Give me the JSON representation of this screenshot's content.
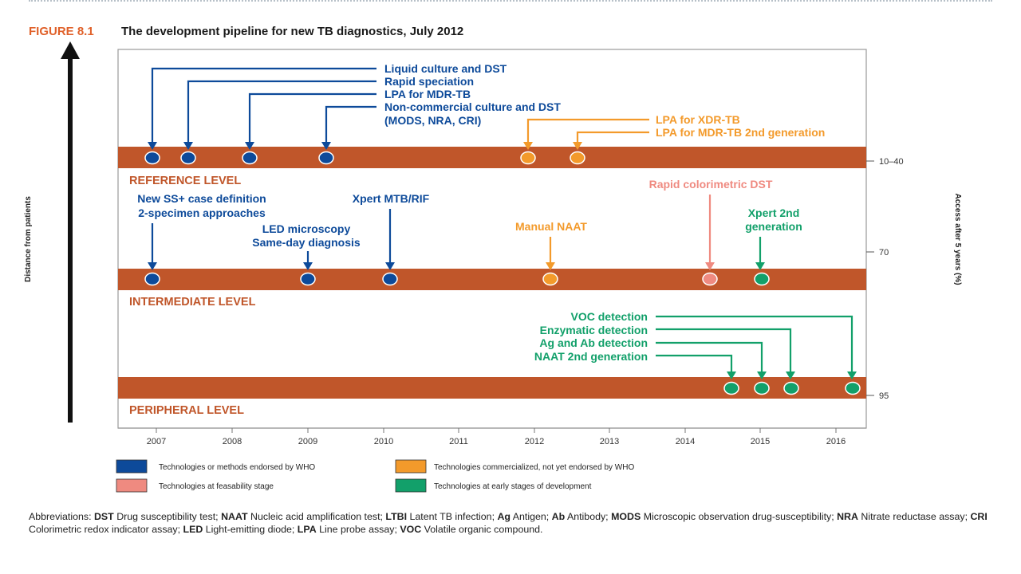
{
  "figure": {
    "label": "FIGURE 8.1",
    "title": "The development pipeline for new TB diagnostics, July 2012"
  },
  "axes": {
    "left_label": "Distance from patients",
    "right_label": "Access after 5 years (%)",
    "years": [
      "2007",
      "2008",
      "2009",
      "2010",
      "2011",
      "2012",
      "2013",
      "2014",
      "2015",
      "2016"
    ],
    "access_ticks": [
      "10–40",
      "70",
      "95"
    ]
  },
  "levels": {
    "reference": "REFERENCE LEVEL",
    "intermediate": "INTERMEDIATE LEVEL",
    "peripheral": "PERIPHERAL LEVEL"
  },
  "colors": {
    "band": "#c0562a",
    "endorsed": "#0d4a9a",
    "commercialized": "#f39a2b",
    "feasibility": "#ef8a80",
    "early": "#12a06a"
  },
  "labels": {
    "liquid_culture": "Liquid culture and DST",
    "rapid_speciation": "Rapid speciation",
    "lpa_mdr": "LPA for MDR-TB",
    "noncommercial_1": "Non-commercial culture and DST",
    "noncommercial_2": "(MODS, NRA, CRI)",
    "lpa_xdr": "LPA for XDR-TB",
    "lpa_mdr_2nd": "LPA for MDR-TB 2nd generation",
    "new_ss_1": "New SS+ case definition",
    "new_ss_2": "2-specimen approaches",
    "led_1": "LED microscopy",
    "led_2": "Same-day diagnosis",
    "xpert": "Xpert MTB/RIF",
    "manual_naat": "Manual NAAT",
    "rapid_colorimetric": "Rapid colorimetric DST",
    "xpert_2nd_1": "Xpert 2nd",
    "xpert_2nd_2": "generation",
    "voc": "VOC detection",
    "enzymatic": "Enzymatic detection",
    "ag_ab": "Ag and Ab detection",
    "naat_2nd": "NAAT 2nd generation"
  },
  "legend": {
    "endorsed": "Technologies or methods endorsed  by WHO",
    "commercialized": "Technologies commercialized, not yet endorsed by WHO",
    "feasibility": "Technologies at feasability stage",
    "early": "Technologies at early stages of development"
  },
  "abbreviations": {
    "dst_term": "DST",
    "dst_def": " Drug susceptibility test; ",
    "naat_term": "NAAT",
    "naat_def": " Nucleic acid amplification test; ",
    "ltbi_term": "LTBI",
    "ltbi_def": " Latent TB infection; ",
    "ag_term": "Ag",
    "ag_def": " Antigen; ",
    "ab_term": "Ab",
    "ab_def": " Antibody; ",
    "mods_term": "MODS",
    "mods_def": " Microscopic observation drug-susceptibility; ",
    "nra_term": "NRA",
    "nra_def": " Nitrate reductase assay; ",
    "cri_term": "CRI",
    "cri_def": " Colorimetric redox indicator assay; ",
    "led_term": "LED",
    "led_def": " Light-emitting diode; ",
    "lpa_term": "LPA",
    "lpa_def": " Line probe assay; ",
    "voc_term": "VOC",
    "voc_def": " Volatile organic compound.",
    "prefix": "Abbreviations: "
  }
}
